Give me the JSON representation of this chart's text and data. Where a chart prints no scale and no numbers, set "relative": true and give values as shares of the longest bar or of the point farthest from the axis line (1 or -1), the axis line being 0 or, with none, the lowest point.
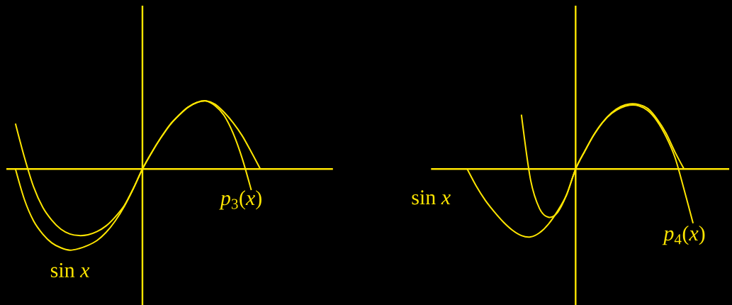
{
  "chart_data": [
    {
      "type": "line",
      "relative": true,
      "categories": [
        null,
        null,
        null,
        null,
        null,
        null,
        null,
        null,
        null,
        null,
        null,
        null,
        null,
        null,
        null,
        null,
        null,
        null,
        null,
        null,
        null,
        null,
        null,
        null,
        null,
        null,
        null,
        null,
        null,
        null,
        null,
        null,
        null,
        null,
        null,
        null,
        null
      ],
      "series": [
        {
          "name": "sin *x*",
          "color": "#ffe600",
          "values": [
            null,
            0,
            -0.38,
            -0.64,
            -0.8,
            -0.91,
            -0.97,
            -1,
            -0.98,
            -0.94,
            -0.88,
            -0.78,
            -0.64,
            -0.46,
            -0.24,
            0,
            0.2,
            0.38,
            0.54,
            0.66,
            0.76,
            0.82,
            0.84,
            0.8,
            0.7,
            0.57,
            0.41,
            0.21,
            0,
            null,
            null,
            null,
            null,
            null,
            null,
            null,
            null
          ]
        },
        {
          "name": "*p*$_{3}$(*x*)",
          "color": "#ffe600",
          "values": [
            null,
            0.56,
            0.14,
            -0.22,
            -0.47,
            -0.63,
            -0.74,
            -0.8,
            -0.82,
            -0.81,
            -0.77,
            -0.7,
            -0.59,
            -0.45,
            -0.24,
            0,
            0.2,
            0.38,
            0.54,
            0.66,
            0.76,
            0.82,
            0.84,
            0.78,
            0.66,
            0.44,
            0.13,
            -0.26,
            null,
            null,
            null,
            null,
            null,
            null,
            null,
            null,
            null
          ]
        }
      ],
      "ref_lines": [
        {
          "axis": "y",
          "value": 0,
          "color": "#ffe600"
        }
      ]
    },
    {
      "type": "line",
      "relative": true,
      "categories": [
        null,
        null,
        null,
        null,
        null,
        null,
        null,
        null,
        null,
        null,
        null,
        null,
        null,
        null,
        null,
        null,
        null,
        null,
        null,
        null,
        null,
        null,
        null,
        null,
        null,
        null,
        null,
        null,
        null,
        null,
        null,
        null,
        null,
        null
      ],
      "series": [
        {
          "name": "sin *x*",
          "color": "#ffe600",
          "values": [
            null,
            null,
            null,
            null,
            0,
            -0.25,
            -0.46,
            -0.63,
            -0.78,
            -0.9,
            -0.98,
            -1,
            -0.94,
            -0.81,
            -0.62,
            -0.38,
            0,
            0.26,
            0.5,
            0.69,
            0.83,
            0.92,
            0.96,
            0.95,
            0.89,
            0.74,
            0.53,
            0.25,
            0,
            null,
            null,
            null,
            null,
            null
          ]
        },
        {
          "name": "*p*$_{4}$(*x*)",
          "color": "#ffe600",
          "values": [
            null,
            null,
            null,
            null,
            null,
            null,
            null,
            null,
            null,
            null,
            0.8,
            -0.15,
            -0.58,
            -0.71,
            -0.64,
            -0.38,
            0,
            0.26,
            0.5,
            0.69,
            0.82,
            0.9,
            0.94,
            0.93,
            0.86,
            0.71,
            0.48,
            0.17,
            -0.3,
            -0.8,
            null,
            null,
            null,
            null
          ]
        }
      ],
      "ref_lines": [
        {
          "axis": "y",
          "value": 0,
          "color": "#ffe600"
        }
      ]
    }
  ]
}
